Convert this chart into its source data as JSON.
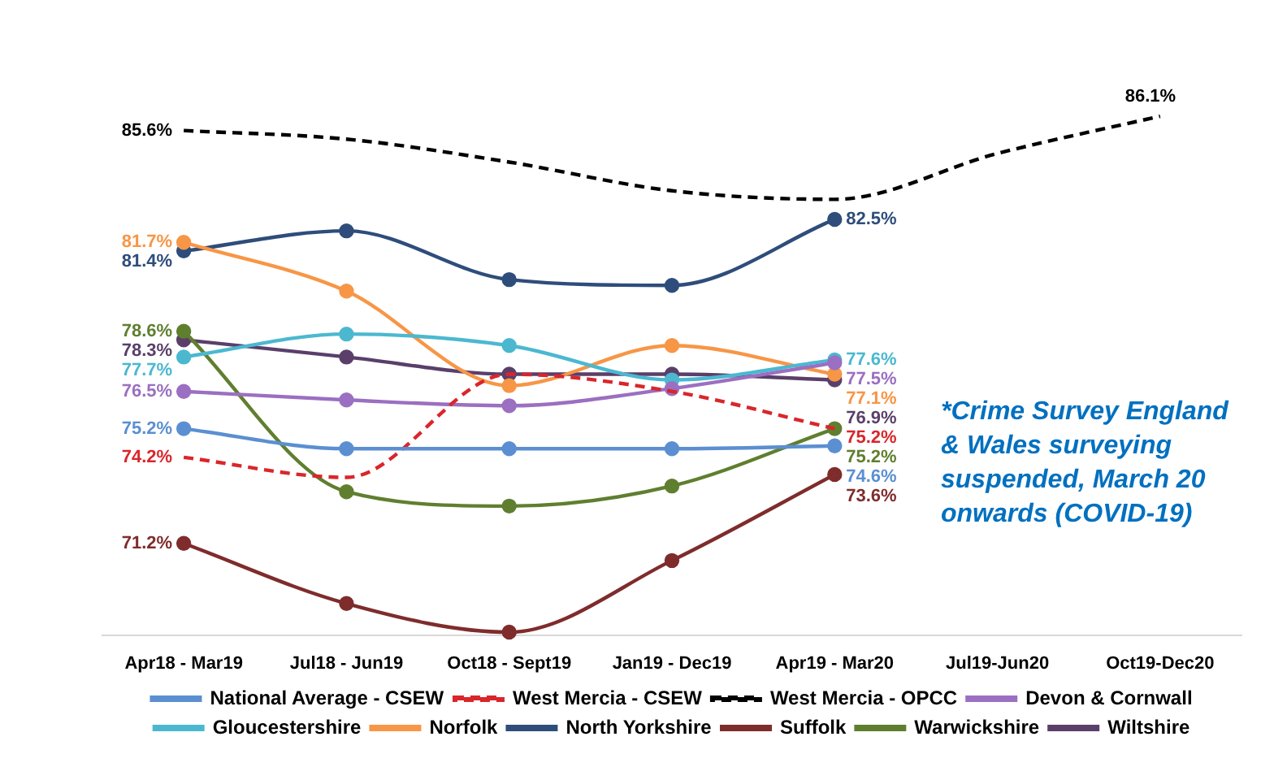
{
  "chart_data": {
    "type": "line",
    "categories": [
      "Apr18 - Mar19",
      "Jul18 - Jun19",
      "Oct18 - Sept19",
      "Jan19 - Dec19",
      "Apr19 - Mar20",
      "Jul19-Jun20",
      "Oct19-Dec20"
    ],
    "grid": false,
    "legend": "bottom",
    "marker": "circle",
    "annotations": [
      "*Crime Survey England & Wales surveying suspended, March 20 onwards (COVID-19)"
    ],
    "series": [
      {
        "name": "National Average - CSEW",
        "color": "#5b8fd1",
        "values": [
          75.2,
          74.5,
          74.5,
          74.5,
          74.6,
          null,
          null
        ],
        "value_labels": [
          "75.2%",
          null,
          null,
          null,
          "74.6%",
          null,
          null
        ]
      },
      {
        "name": "West Mercia - CSEW",
        "color": "#d9262b",
        "line_style": "dashed",
        "marker": "none",
        "values": [
          74.2,
          73.5,
          77.1,
          76.5,
          75.2,
          null,
          null
        ],
        "value_labels": [
          "74.2%",
          null,
          null,
          null,
          "75.2%",
          null,
          null
        ]
      },
      {
        "name": "West Mercia - OPCC",
        "color": "#000000",
        "line_style": "dashed",
        "marker": "none",
        "values": [
          85.6,
          85.3,
          84.5,
          83.5,
          83.2,
          84.8,
          86.1
        ],
        "value_labels": [
          "85.6%",
          null,
          null,
          null,
          null,
          null,
          "86.1%"
        ]
      },
      {
        "name": "Devon & Cornwall",
        "color": "#9b6fc1",
        "values": [
          76.5,
          76.2,
          76.0,
          76.6,
          77.5,
          null,
          null
        ],
        "value_labels": [
          "76.5%",
          null,
          null,
          null,
          "77.5%",
          null,
          null
        ]
      },
      {
        "name": "Gloucestershire",
        "color": "#4bb8d0",
        "values": [
          77.7,
          78.5,
          78.1,
          76.9,
          77.6,
          null,
          null
        ],
        "value_labels": [
          "77.7%",
          null,
          null,
          null,
          "77.6%",
          null,
          null
        ]
      },
      {
        "name": "Norfolk",
        "color": "#f79646",
        "values": [
          81.7,
          80.0,
          76.7,
          78.1,
          77.1,
          null,
          null
        ],
        "value_labels": [
          "81.7%",
          null,
          null,
          null,
          "77.1%",
          null,
          null
        ]
      },
      {
        "name": "North Yorkshire",
        "color": "#2e4d7b",
        "values": [
          81.4,
          82.1,
          80.4,
          80.2,
          82.5,
          null,
          null
        ],
        "value_labels": [
          "81.4%",
          null,
          null,
          null,
          "82.5%",
          null,
          null
        ]
      },
      {
        "name": "Suffolk",
        "color": "#7f2c2c",
        "values": [
          71.2,
          69.1,
          68.1,
          70.6,
          73.6,
          null,
          null
        ],
        "value_labels": [
          "71.2%",
          null,
          null,
          null,
          "73.6%",
          null,
          null
        ]
      },
      {
        "name": "Warwickshire",
        "color": "#5f7f2f",
        "values": [
          78.6,
          73.0,
          72.5,
          73.2,
          75.2,
          null,
          null
        ],
        "value_labels": [
          "78.6%",
          null,
          null,
          null,
          "75.2%",
          null,
          null
        ]
      },
      {
        "name": "Wiltshire",
        "color": "#5a3f6a",
        "values": [
          78.3,
          77.7,
          77.1,
          77.1,
          76.9,
          null,
          null
        ],
        "value_labels": [
          "78.3%",
          null,
          null,
          null,
          "76.9%",
          null,
          null
        ]
      }
    ]
  }
}
